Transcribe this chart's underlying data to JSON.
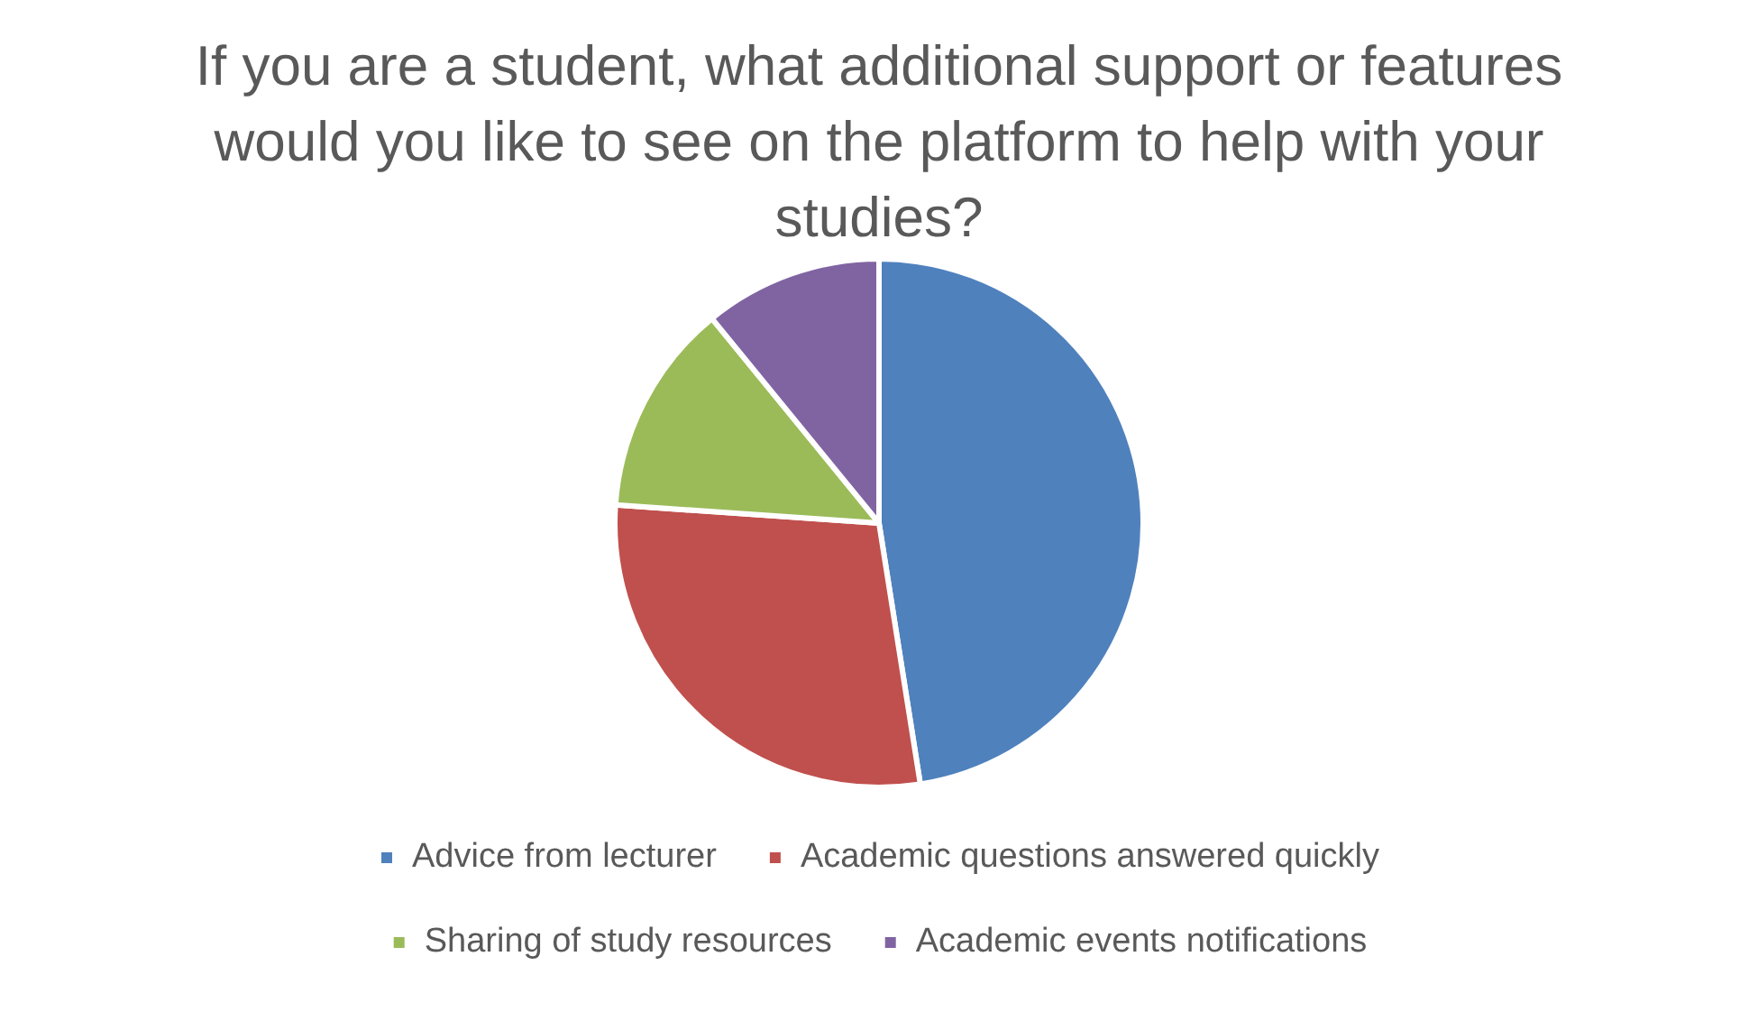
{
  "chart_data": {
    "type": "pie",
    "title": "If you are a student, what additional support or features would you like to see on the platform to help with your studies?",
    "categories": [
      "Advice from lecturer",
      "Academic questions answered quickly",
      "Sharing of study resources",
      "Academic events notifications"
    ],
    "values": [
      47.5,
      28.6,
      13,
      10.9
    ],
    "colors": [
      "#4f81bd",
      "#c0504d",
      "#9bbb59",
      "#8064a2"
    ],
    "legend": "bottom"
  }
}
